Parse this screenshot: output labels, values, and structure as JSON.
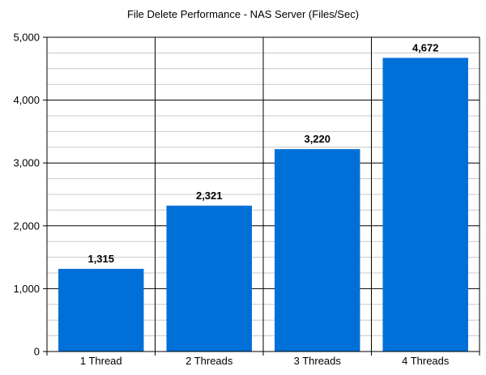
{
  "chart_data": {
    "type": "bar",
    "title": "File Delete Performance - NAS Server (Files/Sec)",
    "xlabel": "",
    "ylabel": "",
    "categories": [
      "1 Thread",
      "2 Threads",
      "3 Threads",
      "4 Threads"
    ],
    "values": [
      1315,
      2321,
      3220,
      4672
    ],
    "data_labels": [
      "1,315",
      "2,321",
      "3,220",
      "4,672"
    ],
    "ylim": [
      0,
      5000
    ],
    "y_ticks": [
      0,
      1000,
      2000,
      3000,
      4000,
      5000
    ],
    "y_tick_labels": [
      "0",
      "1,000",
      "2,000",
      "3,000",
      "4,000",
      "5,000"
    ],
    "grid": true,
    "legend": "none",
    "bar_color": "#0070D8",
    "major_grid_color": "#000000",
    "minor_grid_color": "#C8C8C8"
  }
}
